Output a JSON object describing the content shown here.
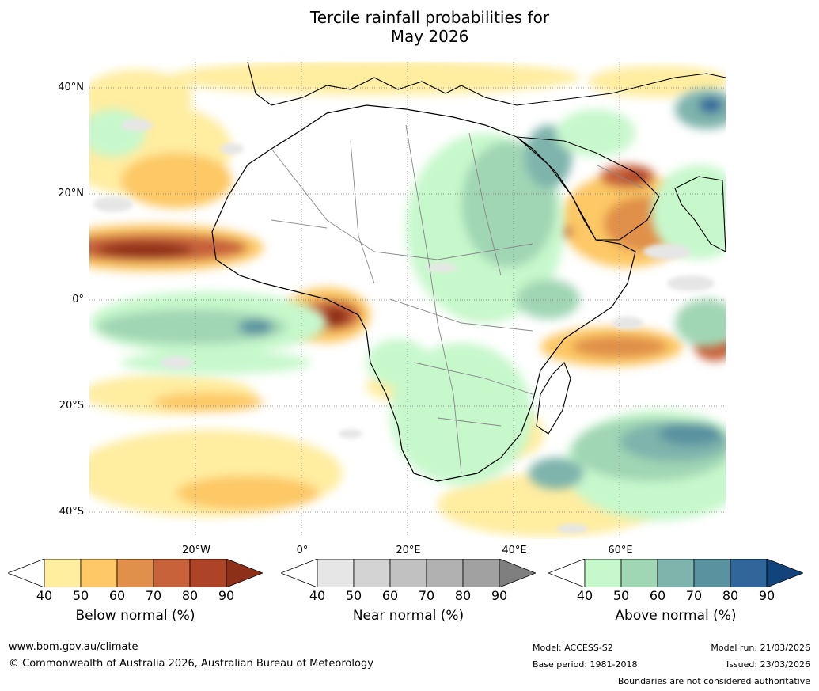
{
  "title": {
    "line1": "Tercile rainfall probabilities for",
    "line2": "May 2026"
  },
  "map": {
    "lat_labels": [
      "40°N",
      "20°N",
      "0°",
      "20°S",
      "40°S"
    ],
    "lon_labels": [
      "20°W",
      "0°",
      "20°E",
      "40°E",
      "60°E"
    ],
    "lat_range": [
      -45,
      45
    ],
    "lon_range": [
      -40,
      80
    ]
  },
  "colorbars": {
    "below": {
      "label": "Below normal (%)",
      "ticks": [
        "40",
        "50",
        "60",
        "70",
        "80",
        "90"
      ],
      "colors": [
        "#ffeda0",
        "#fdc865",
        "#e0904a",
        "#c8623a",
        "#ad4428",
        "#8e2f18"
      ]
    },
    "near": {
      "label": "Near normal (%)",
      "ticks": [
        "40",
        "50",
        "60",
        "70",
        "80",
        "90"
      ],
      "colors": [
        "#e6e6e6",
        "#d3d3d3",
        "#c1c1c1",
        "#b1b1b1",
        "#a1a1a1",
        "#7f7f7f"
      ]
    },
    "above": {
      "label": "Above normal (%)",
      "ticks": [
        "40",
        "50",
        "60",
        "70",
        "80",
        "90"
      ],
      "colors": [
        "#c7f8cc",
        "#a0d6b4",
        "#7eb4ac",
        "#5a92a0",
        "#31669a",
        "#12437a"
      ]
    }
  },
  "footer": {
    "website": "www.bom.gov.au/climate",
    "copyright": "© Commonwealth of Australia 2026, Australian Bureau of Meteorology",
    "model": "Model: ACCESS-S2",
    "base_period": "Base period: 1981-2018",
    "model_run": "Model run: 21/03/2026",
    "issued": "Issued: 23/03/2026",
    "disclaimer": "Boundaries are not considered authoritative"
  }
}
